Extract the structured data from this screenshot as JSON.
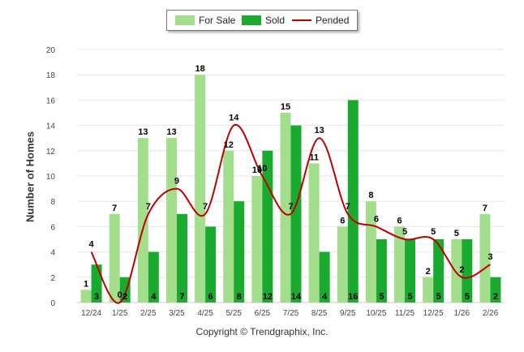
{
  "chart_data": {
    "type": "bar",
    "categories": [
      "12/24",
      "1/25",
      "2/25",
      "3/25",
      "4/25",
      "5/25",
      "6/25",
      "7/25",
      "8/25",
      "9/25",
      "10/25",
      "11/25",
      "12/25",
      "1/26",
      "2/26"
    ],
    "series": [
      {
        "name": "For Sale",
        "type": "bar",
        "color": "#a3de8c",
        "values": [
          1,
          7,
          13,
          13,
          18,
          12,
          10,
          15,
          11,
          6,
          8,
          6,
          2,
          5,
          7
        ]
      },
      {
        "name": "Sold",
        "type": "bar",
        "color": "#1aaa2f",
        "values": [
          3,
          2,
          4,
          7,
          6,
          8,
          12,
          14,
          4,
          16,
          5,
          5,
          5,
          5,
          2
        ]
      },
      {
        "name": "Pended",
        "type": "line",
        "color": "#c00000",
        "values": [
          4,
          0,
          7,
          9,
          7,
          14,
          10,
          7,
          13,
          7,
          6,
          5,
          5,
          2,
          3
        ]
      }
    ],
    "ylabel": "Number of Homes",
    "ylim": [
      0,
      20
    ],
    "yticks": [
      0,
      2,
      4,
      6,
      8,
      10,
      12,
      14,
      16,
      18,
      20
    ],
    "grid": true,
    "legend_position": "top-center"
  },
  "footer": {
    "copyright": "Copyright © Trendgraphix, Inc."
  }
}
